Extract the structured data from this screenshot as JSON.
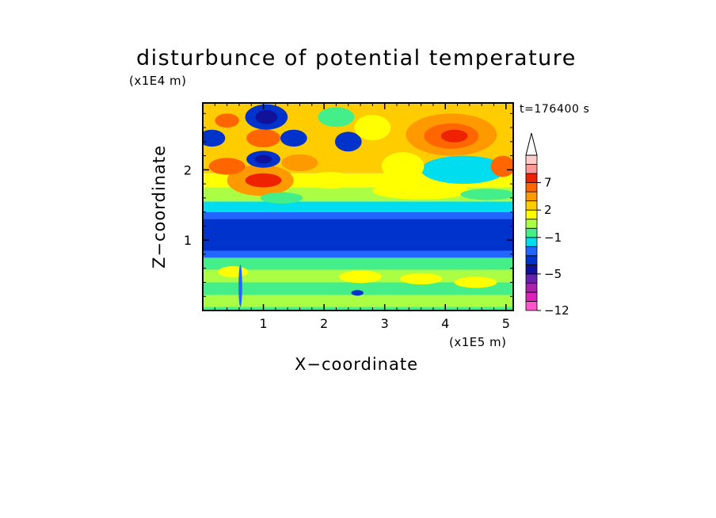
{
  "chart_data": {
    "type": "heatmap",
    "title": "disturbunce of potential temperature",
    "xlabel": "X−coordinate",
    "ylabel": "Z−coordinate",
    "x_unit": "(x1E5 m)",
    "y_unit": "(x1E4 m)",
    "time_label": "t=176400 s",
    "xlim": [
      0,
      5.12
    ],
    "ylim": [
      0,
      2.95
    ],
    "x_ticks": [
      1,
      2,
      3,
      4,
      5
    ],
    "y_ticks": [
      1,
      2
    ],
    "x_tick_labels": [
      "1",
      "2",
      "3",
      "4",
      "5"
    ],
    "y_tick_labels": [
      "1",
      "2"
    ],
    "colorbar": {
      "levels": [
        -12,
        -10,
        -8,
        -6,
        -5,
        -4,
        -3,
        -2,
        -1,
        0,
        1,
        2,
        3,
        5,
        7,
        9,
        11
      ],
      "colors": [
        "#ff55cc",
        "#dd22bb",
        "#aa22aa",
        "#6622aa",
        "#111199",
        "#0033cc",
        "#2266ff",
        "#00ddee",
        "#44ee88",
        "#aaff44",
        "#ffff00",
        "#ffcc00",
        "#ff9900",
        "#ff6600",
        "#ee2200",
        "#ff9999",
        "#ffcccc"
      ],
      "extend": "max",
      "labeled_levels": [
        -12,
        -5,
        -1,
        2,
        7
      ],
      "labels": [
        "−12",
        "−5",
        "−1",
        "2",
        "7"
      ]
    },
    "bands": [
      {
        "z_bottom": 0.0,
        "z_top": 0.05,
        "color": "#44ee88"
      },
      {
        "z_bottom": 0.05,
        "z_top": 0.22,
        "color": "#aaff44"
      },
      {
        "z_bottom": 0.22,
        "z_top": 0.4,
        "color": "#44ee88"
      },
      {
        "z_bottom": 0.4,
        "z_top": 0.58,
        "color": "#aaff44"
      },
      {
        "z_bottom": 0.58,
        "z_top": 0.75,
        "color": "#44ee88"
      },
      {
        "z_bottom": 0.75,
        "z_top": 0.85,
        "color": "#2266ff"
      },
      {
        "z_bottom": 0.85,
        "z_top": 1.3,
        "color": "#0033cc"
      },
      {
        "z_bottom": 1.3,
        "z_top": 1.4,
        "color": "#2266ff"
      },
      {
        "z_bottom": 1.4,
        "z_top": 1.55,
        "color": "#00ddee"
      },
      {
        "z_bottom": 1.55,
        "z_top": 1.75,
        "color": "#aaff44"
      },
      {
        "z_bottom": 1.75,
        "z_top": 1.95,
        "color": "#ffff00"
      },
      {
        "z_bottom": 1.95,
        "z_top": 2.95,
        "color": "#ffcc00"
      }
    ],
    "features": [
      {
        "x": 0.95,
        "z": 1.85,
        "rx": 0.55,
        "rz": 0.22,
        "color": "#ff9900"
      },
      {
        "x": 1.0,
        "z": 1.85,
        "rx": 0.3,
        "rz": 0.1,
        "color": "#ee2200"
      },
      {
        "x": 1.0,
        "z": 2.15,
        "rx": 0.28,
        "rz": 0.12,
        "color": "#0033cc"
      },
      {
        "x": 1.0,
        "z": 2.15,
        "rx": 0.14,
        "rz": 0.06,
        "color": "#111199"
      },
      {
        "x": 1.0,
        "z": 2.45,
        "rx": 0.28,
        "rz": 0.13,
        "color": "#ff6600"
      },
      {
        "x": 1.05,
        "z": 2.75,
        "rx": 0.35,
        "rz": 0.18,
        "color": "#0033cc"
      },
      {
        "x": 1.05,
        "z": 2.75,
        "rx": 0.18,
        "rz": 0.1,
        "color": "#111199"
      },
      {
        "x": 0.15,
        "z": 2.45,
        "rx": 0.22,
        "rz": 0.12,
        "color": "#0033cc"
      },
      {
        "x": 0.4,
        "z": 2.05,
        "rx": 0.3,
        "rz": 0.12,
        "color": "#ff6600"
      },
      {
        "x": 0.4,
        "z": 2.7,
        "rx": 0.2,
        "rz": 0.1,
        "color": "#ff6600"
      },
      {
        "x": 1.5,
        "z": 2.45,
        "rx": 0.22,
        "rz": 0.12,
        "color": "#0033cc"
      },
      {
        "x": 1.6,
        "z": 2.1,
        "rx": 0.3,
        "rz": 0.12,
        "color": "#ff9900"
      },
      {
        "x": 2.4,
        "z": 2.4,
        "rx": 0.22,
        "rz": 0.14,
        "color": "#0033cc"
      },
      {
        "x": 2.8,
        "z": 2.6,
        "rx": 0.3,
        "rz": 0.18,
        "color": "#ffff00"
      },
      {
        "x": 2.2,
        "z": 2.75,
        "rx": 0.3,
        "rz": 0.14,
        "color": "#44ee88"
      },
      {
        "x": 2.1,
        "z": 1.85,
        "rx": 0.4,
        "rz": 0.12,
        "color": "#ffff00"
      },
      {
        "x": 3.6,
        "z": 1.7,
        "rx": 0.8,
        "rz": 0.12,
        "color": "#ffff00"
      },
      {
        "x": 4.1,
        "z": 2.5,
        "rx": 0.75,
        "rz": 0.3,
        "color": "#ff9900"
      },
      {
        "x": 4.1,
        "z": 2.48,
        "rx": 0.45,
        "rz": 0.18,
        "color": "#ff6600"
      },
      {
        "x": 4.15,
        "z": 2.48,
        "rx": 0.22,
        "rz": 0.09,
        "color": "#ee2200"
      },
      {
        "x": 4.3,
        "z": 2.0,
        "rx": 0.7,
        "rz": 0.2,
        "color": "#00ddee"
      },
      {
        "x": 3.3,
        "z": 2.05,
        "rx": 0.35,
        "rz": 0.2,
        "color": "#ffff00"
      },
      {
        "x": 4.95,
        "z": 2.05,
        "rx": 0.2,
        "rz": 0.15,
        "color": "#ff6600"
      },
      {
        "x": 1.3,
        "z": 1.6,
        "rx": 0.35,
        "rz": 0.08,
        "color": "#44ee88"
      },
      {
        "x": 4.7,
        "z": 1.65,
        "rx": 0.45,
        "rz": 0.08,
        "color": "#44ee88"
      },
      {
        "x": 0.5,
        "z": 0.55,
        "rx": 0.25,
        "rz": 0.08,
        "color": "#ffff00"
      },
      {
        "x": 2.6,
        "z": 0.48,
        "rx": 0.35,
        "rz": 0.09,
        "color": "#ffff00"
      },
      {
        "x": 3.6,
        "z": 0.45,
        "rx": 0.35,
        "rz": 0.08,
        "color": "#ffff00"
      },
      {
        "x": 4.5,
        "z": 0.4,
        "rx": 0.35,
        "rz": 0.08,
        "color": "#ffff00"
      },
      {
        "x": 2.55,
        "z": 0.25,
        "rx": 0.1,
        "rz": 0.04,
        "color": "#0033cc"
      },
      {
        "x": 0.62,
        "z": 0.35,
        "rx": 0.03,
        "rz": 0.3,
        "color": "#2266ff"
      }
    ]
  }
}
